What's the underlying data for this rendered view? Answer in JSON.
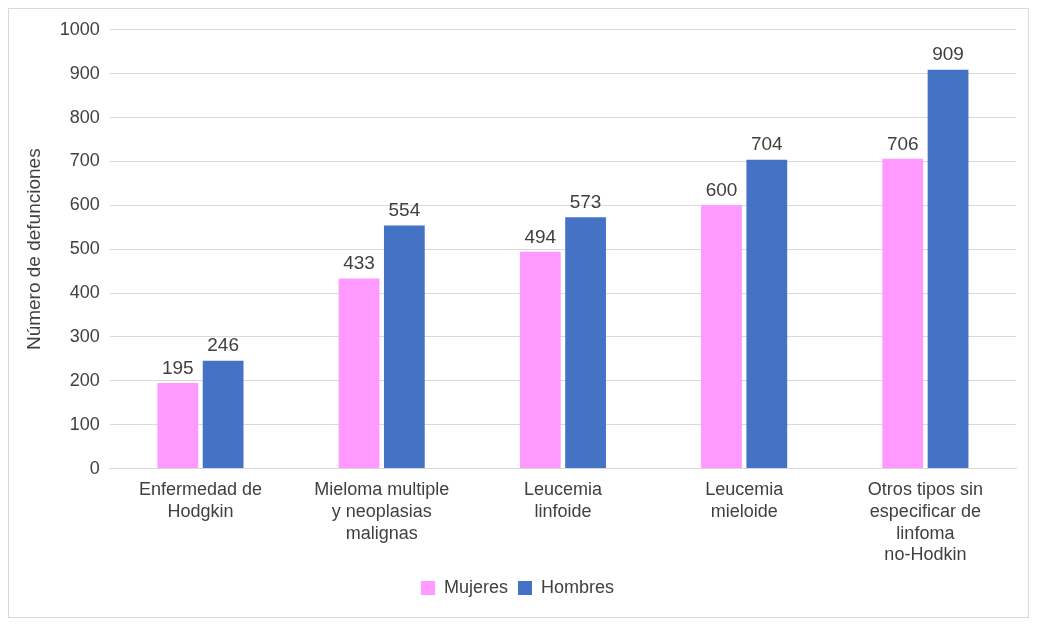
{
  "chart_data": {
    "type": "bar",
    "ylabel": "Número de defunciones",
    "categories": [
      "Enfermedad de Hodgkin",
      "Mieloma multiple y neoplasias malignas",
      "Leucemia linfoide",
      "Leucemia mieloide",
      "Otros tipos sin especificar de linfoma no-Hodkin"
    ],
    "series": [
      {
        "name": "Mujeres",
        "color": "#ff99ff",
        "values": [
          195,
          433,
          494,
          600,
          706
        ]
      },
      {
        "name": "Hombres",
        "color": "#4472c4",
        "values": [
          246,
          554,
          573,
          704,
          909
        ]
      }
    ],
    "ylim": [
      0,
      1000
    ],
    "yticks": [
      0,
      100,
      200,
      300,
      400,
      500,
      600,
      700,
      800,
      900,
      1000
    ],
    "grid": "y",
    "legend": "bottom",
    "data_labels": true
  }
}
